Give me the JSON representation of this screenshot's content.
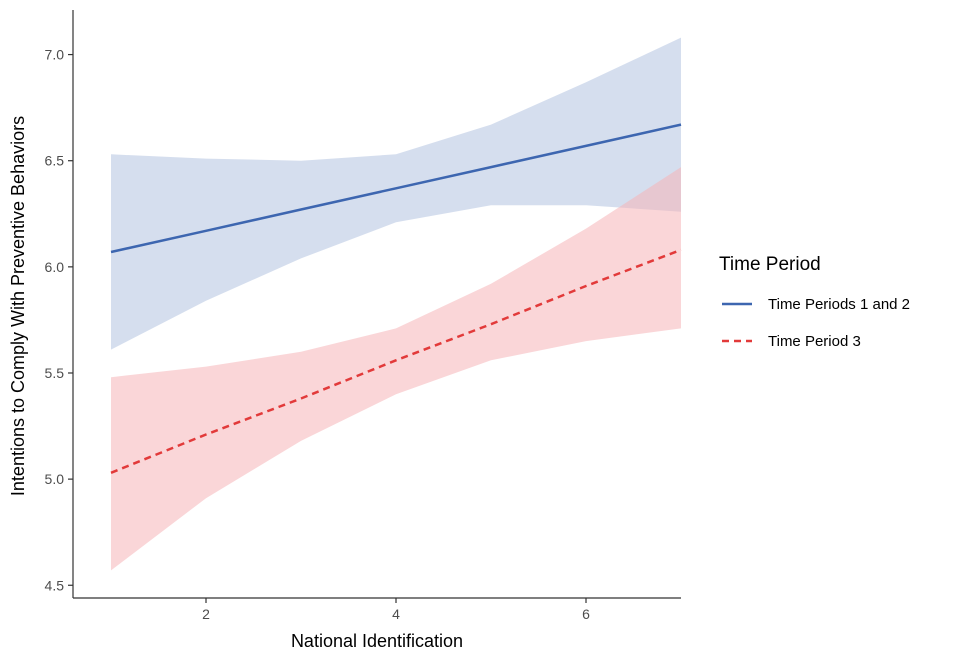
{
  "chart_data": {
    "type": "line",
    "title": "",
    "xlabel": "National Identification",
    "ylabel": "Intentions to Comply With Preventive Behaviors",
    "xlim": [
      0.6,
      7.0
    ],
    "ylim": [
      4.44,
      7.21
    ],
    "xticks": [
      2,
      4,
      6
    ],
    "yticks": [
      4.5,
      5.0,
      5.5,
      6.0,
      6.5,
      7.0
    ],
    "xtick_labels": [
      "2",
      "4",
      "6"
    ],
    "ytick_labels": [
      "4.5",
      "5.0",
      "5.5",
      "6.0",
      "6.5",
      "7.0"
    ],
    "grid": false,
    "legend": {
      "title": "Time Period",
      "position": "right"
    },
    "x": [
      1,
      2,
      3,
      4,
      5,
      6,
      7
    ],
    "series": [
      {
        "name": "Time Periods 1 and 2",
        "color": "#3d66b0",
        "band_color": "#b3c3e0",
        "line_style": "solid",
        "values": [
          6.07,
          6.17,
          6.27,
          6.37,
          6.47,
          6.57,
          6.67
        ],
        "lower": [
          5.61,
          5.84,
          6.04,
          6.21,
          6.29,
          6.29,
          6.26
        ],
        "upper": [
          6.53,
          6.51,
          6.5,
          6.53,
          6.67,
          6.87,
          7.08
        ]
      },
      {
        "name": "Time Period 3",
        "color": "#e23a3a",
        "band_color": "#f6b5b8",
        "line_style": "dashed",
        "values": [
          5.03,
          5.21,
          5.38,
          5.56,
          5.73,
          5.91,
          6.08
        ],
        "lower": [
          4.57,
          4.91,
          5.18,
          5.4,
          5.56,
          5.65,
          5.71
        ],
        "upper": [
          5.48,
          5.53,
          5.6,
          5.71,
          5.92,
          6.18,
          6.47
        ]
      }
    ]
  }
}
